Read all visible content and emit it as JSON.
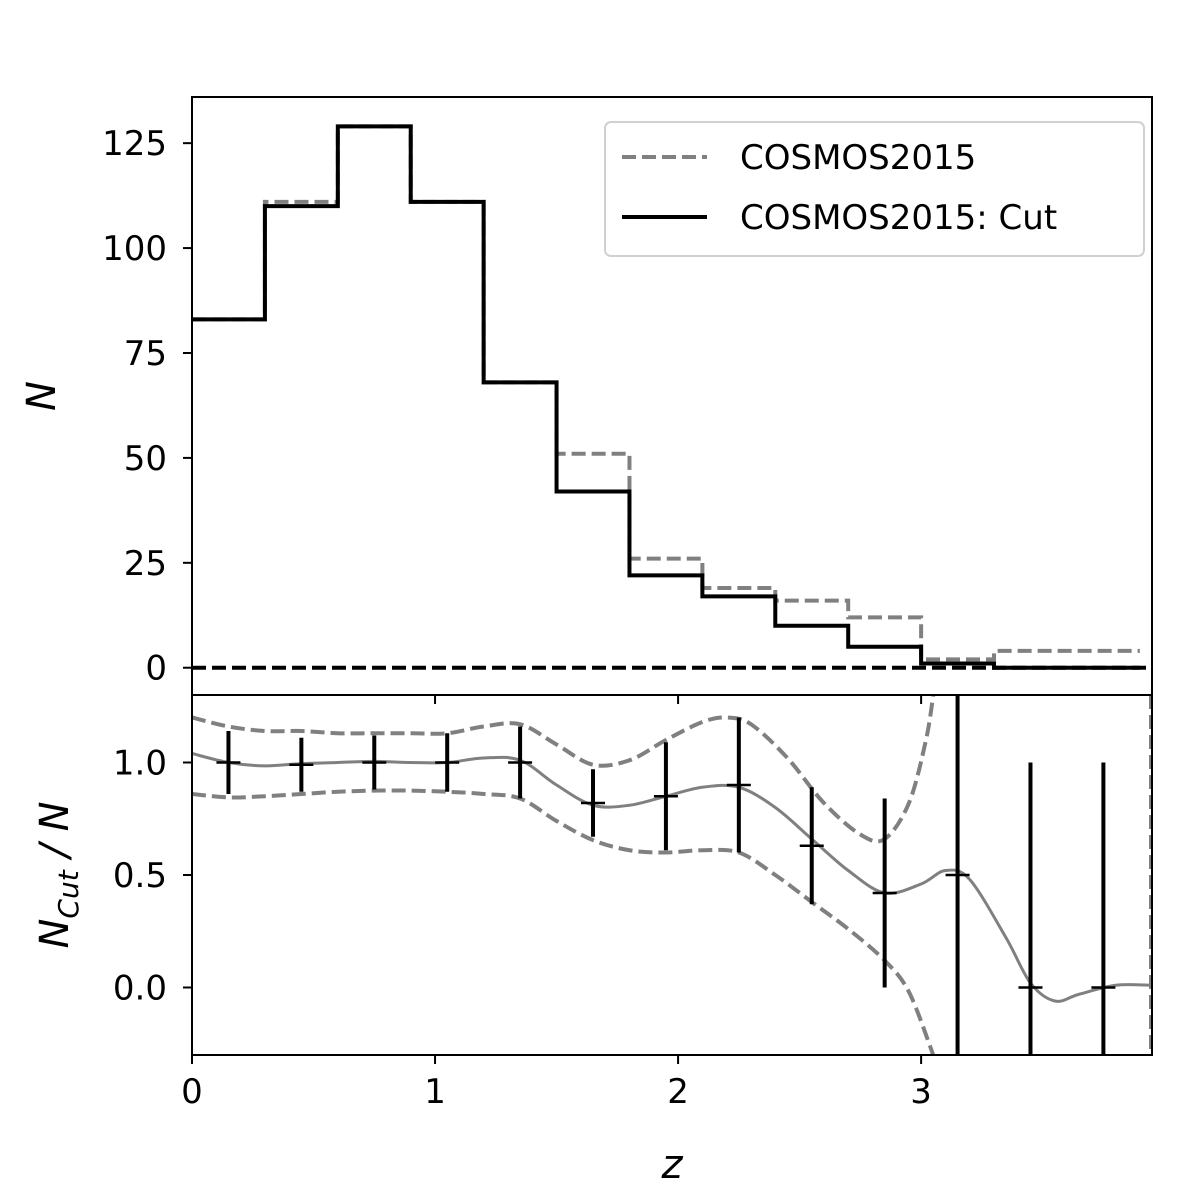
{
  "chart_data": [
    {
      "type": "step",
      "panel": "top",
      "ylabel": "N",
      "ylim": [
        -6.5,
        136
      ],
      "xlim": [
        0,
        3.95
      ],
      "yticks": [
        0,
        25,
        50,
        75,
        100,
        125
      ],
      "bin_edges": [
        0,
        0.3,
        0.6,
        0.9,
        1.2,
        1.5,
        1.8,
        2.1,
        2.4,
        2.7,
        3.0,
        3.3,
        3.6,
        3.9
      ],
      "series": [
        {
          "name": "COSMOS2015",
          "style": "dashed",
          "color": "#808080",
          "values": [
            83,
            111,
            129,
            111,
            68,
            51,
            26,
            19,
            16,
            12,
            2,
            4,
            4
          ]
        },
        {
          "name": "COSMOS2015: Cut",
          "style": "solid",
          "color": "#000000",
          "values": [
            83,
            110,
            129,
            111,
            68,
            42,
            22,
            17,
            10,
            5,
            1,
            0,
            0
          ]
        }
      ],
      "hline": {
        "y": 0,
        "style": "dashed",
        "color": "#000000"
      },
      "legend": "top-right"
    },
    {
      "type": "errorbar",
      "panel": "bottom",
      "xlabel": "z",
      "ylabel_main": "N",
      "ylabel_sub": "Cut",
      "ylabel_rest": " / N",
      "ylim": [
        -0.3,
        1.3
      ],
      "xlim": [
        0,
        3.95
      ],
      "yticks": [
        "0.0",
        "0.5",
        "1.0"
      ],
      "xticks": [
        "0",
        "1",
        "2",
        "3"
      ],
      "points": {
        "x": [
          0.15,
          0.45,
          0.75,
          1.05,
          1.35,
          1.65,
          1.95,
          2.25,
          2.55,
          2.85,
          3.15,
          3.45,
          3.75
        ],
        "y": [
          1.0,
          0.99,
          1.0,
          1.0,
          1.0,
          0.82,
          0.85,
          0.9,
          0.63,
          0.42,
          0.5,
          0.0,
          0.0
        ],
        "yerr_low": [
          0.14,
          0.12,
          0.12,
          0.13,
          0.16,
          0.15,
          0.24,
          0.3,
          0.26,
          0.42,
          1.0,
          1.0,
          1.0
        ],
        "yerr_high": [
          0.14,
          0.12,
          0.12,
          0.13,
          0.16,
          0.15,
          0.24,
          0.3,
          0.26,
          0.42,
          1.0,
          1.0,
          1.0
        ]
      },
      "curves": {
        "color": "#808080",
        "mean": [
          [
            0,
            1.04
          ],
          [
            0.15,
            1.0
          ],
          [
            0.3,
            0.985
          ],
          [
            0.45,
            0.995
          ],
          [
            0.6,
            1.0
          ],
          [
            0.75,
            1.005
          ],
          [
            0.9,
            1.0
          ],
          [
            1.05,
            1.0
          ],
          [
            1.2,
            1.02
          ],
          [
            1.35,
            1.01
          ],
          [
            1.5,
            0.9
          ],
          [
            1.65,
            0.81
          ],
          [
            1.8,
            0.81
          ],
          [
            1.95,
            0.85
          ],
          [
            2.1,
            0.89
          ],
          [
            2.25,
            0.89
          ],
          [
            2.4,
            0.8
          ],
          [
            2.55,
            0.66
          ],
          [
            2.7,
            0.52
          ],
          [
            2.85,
            0.42
          ],
          [
            3.0,
            0.46
          ],
          [
            3.1,
            0.52
          ],
          [
            3.2,
            0.48
          ],
          [
            3.35,
            0.22
          ],
          [
            3.45,
            0.02
          ],
          [
            3.55,
            -0.06
          ],
          [
            3.65,
            -0.03
          ],
          [
            3.8,
            0.01
          ],
          [
            3.95,
            0.01
          ]
        ],
        "upper": [
          [
            0,
            1.2
          ],
          [
            0.15,
            1.16
          ],
          [
            0.3,
            1.14
          ],
          [
            0.45,
            1.14
          ],
          [
            0.6,
            1.13
          ],
          [
            0.75,
            1.13
          ],
          [
            0.9,
            1.13
          ],
          [
            1.05,
            1.13
          ],
          [
            1.2,
            1.16
          ],
          [
            1.35,
            1.17
          ],
          [
            1.5,
            1.08
          ],
          [
            1.65,
            0.99
          ],
          [
            1.8,
            1.01
          ],
          [
            1.95,
            1.1
          ],
          [
            2.1,
            1.18
          ],
          [
            2.2,
            1.2
          ],
          [
            2.3,
            1.17
          ],
          [
            2.45,
            1.02
          ],
          [
            2.6,
            0.82
          ],
          [
            2.75,
            0.68
          ],
          [
            2.85,
            0.66
          ],
          [
            2.95,
            0.82
          ],
          [
            3.02,
            1.1
          ],
          [
            3.05,
            1.3
          ]
        ],
        "lower": [
          [
            0,
            0.86
          ],
          [
            0.15,
            0.845
          ],
          [
            0.3,
            0.85
          ],
          [
            0.45,
            0.86
          ],
          [
            0.6,
            0.87
          ],
          [
            0.75,
            0.875
          ],
          [
            0.9,
            0.875
          ],
          [
            1.05,
            0.87
          ],
          [
            1.2,
            0.86
          ],
          [
            1.35,
            0.84
          ],
          [
            1.5,
            0.74
          ],
          [
            1.65,
            0.655
          ],
          [
            1.8,
            0.61
          ],
          [
            1.95,
            0.6
          ],
          [
            2.1,
            0.61
          ],
          [
            2.25,
            0.6
          ],
          [
            2.4,
            0.5
          ],
          [
            2.55,
            0.38
          ],
          [
            2.7,
            0.26
          ],
          [
            2.85,
            0.12
          ],
          [
            2.95,
            -0.02
          ],
          [
            3.05,
            -0.3
          ]
        ]
      }
    }
  ]
}
